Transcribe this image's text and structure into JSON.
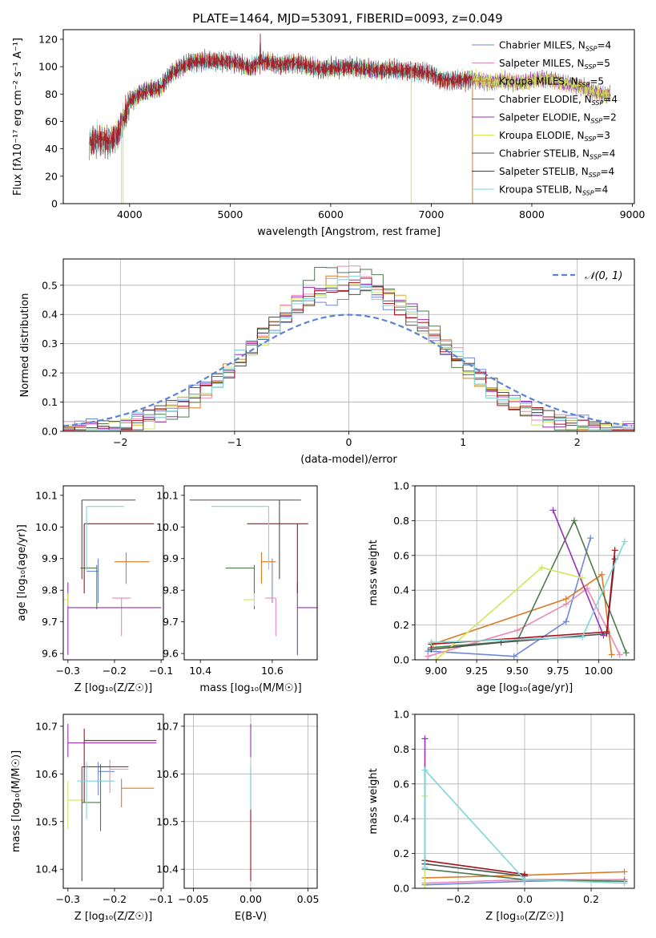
{
  "figure_title": "PLATE=1464, MJD=53091, FIBERID=0093, z=0.049",
  "models": [
    {
      "name": "Chabrier MILES",
      "nssp": "4",
      "color": "#6f88d9"
    },
    {
      "name": "Salpeter MILES",
      "nssp": "5",
      "color": "#e98ab8"
    },
    {
      "name": "Kroupa MILES",
      "nssp": "5",
      "color": "#dc7a25"
    },
    {
      "name": "Chabrier ELODIE",
      "nssp": "4",
      "color": "#4e7a4e"
    },
    {
      "name": "Salpeter ELODIE",
      "nssp": "2",
      "color": "#9a2fb8"
    },
    {
      "name": "Kroupa ELODIE",
      "nssp": "3",
      "color": "#d3e659"
    },
    {
      "name": "Chabrier STELIB",
      "nssp": "4",
      "color": "#4f4f4f"
    },
    {
      "name": "Salpeter STELIB",
      "nssp": "4",
      "color": "#a6101a"
    },
    {
      "name": "Kroupa STELIB",
      "nssp": "4",
      "color": "#7fd6d8"
    }
  ],
  "chart_data": [
    {
      "id": "spectrum",
      "type": "line",
      "xlabel": "wavelength [Angstrom, rest frame]",
      "ylabel": "Flux [fλ10⁻¹⁷ erg cm⁻² s⁻¹ A⁻¹]",
      "xlim": [
        3340,
        9020
      ],
      "ylim": [
        0,
        127
      ],
      "xticks": [
        4000,
        5000,
        6000,
        7000,
        8000,
        9000
      ],
      "yticks": [
        0,
        20,
        40,
        60,
        80,
        100,
        120
      ],
      "legend": "upper right",
      "continuum": [
        [
          3600,
          44
        ],
        [
          3700,
          47
        ],
        [
          3800,
          45
        ],
        [
          3880,
          50
        ],
        [
          3950,
          63
        ],
        [
          4000,
          75
        ],
        [
          4100,
          80
        ],
        [
          4200,
          83
        ],
        [
          4300,
          84
        ],
        [
          4400,
          94
        ],
        [
          4500,
          99
        ],
        [
          4600,
          103
        ],
        [
          4700,
          104
        ],
        [
          4800,
          104
        ],
        [
          4900,
          104
        ],
        [
          5000,
          104
        ],
        [
          5100,
          102
        ],
        [
          5200,
          99
        ],
        [
          5300,
          104
        ],
        [
          5400,
          103
        ],
        [
          5500,
          101
        ],
        [
          5600,
          103
        ],
        [
          5700,
          102
        ],
        [
          5800,
          100
        ],
        [
          5900,
          98
        ],
        [
          6000,
          99
        ],
        [
          6100,
          99
        ],
        [
          6200,
          100
        ],
        [
          6300,
          98
        ],
        [
          6400,
          98
        ],
        [
          6500,
          97
        ],
        [
          6600,
          98
        ],
        [
          6700,
          97
        ],
        [
          6800,
          97
        ],
        [
          6900,
          96
        ],
        [
          7000,
          95
        ],
        [
          7100,
          90
        ],
        [
          7200,
          90
        ],
        [
          7300,
          90
        ],
        [
          7400,
          91
        ],
        [
          7500,
          90
        ],
        [
          7600,
          88
        ],
        [
          7700,
          90
        ],
        [
          7800,
          89
        ],
        [
          7900,
          88
        ],
        [
          8000,
          90
        ],
        [
          8100,
          91
        ],
        [
          8200,
          90
        ],
        [
          8300,
          88
        ],
        [
          8400,
          87
        ],
        [
          8500,
          85
        ],
        [
          8600,
          82
        ],
        [
          8700,
          80
        ],
        [
          8780,
          80
        ]
      ],
      "dropouts": [
        3918,
        3935,
        6800,
        7410
      ]
    },
    {
      "id": "residuals",
      "type": "histogram",
      "xlabel": "(data-model)/error",
      "ylabel": "Normed distribution",
      "xlim": [
        -2.5,
        2.5
      ],
      "ylim": [
        0,
        0.59
      ],
      "xticks": [
        -2,
        -1,
        0,
        1,
        2
      ],
      "yticks": [
        0.0,
        0.1,
        0.2,
        0.3,
        0.4,
        0.5
      ],
      "legend_label": "𝒩(0, 1)",
      "legend": "upper right",
      "bin_width": 0.1,
      "peaks": [
        0.47,
        0.54,
        0.51,
        0.56,
        0.51,
        0.51,
        0.49,
        0.5,
        0.5
      ],
      "peak_shift": [
        0.25,
        0.15,
        -0.05,
        -0.05,
        0.25,
        0.15,
        0.0,
        0.1,
        0.0
      ],
      "amp": [
        0.1,
        0.07,
        0.08,
        0.08,
        0.05,
        0.05,
        0.08,
        0.04,
        0.0
      ],
      "widths": [
        0.85,
        0.77,
        0.78,
        0.74,
        0.8,
        0.78,
        0.82,
        0.8,
        0.8
      ]
    },
    {
      "id": "age-vs-Z",
      "type": "errorbar",
      "xlabel": "Z [log₁₀(Z/Z☉)]",
      "ylabel": "age  [log₁₀(age/yr)]",
      "xlim": [
        -0.31,
        -0.095
      ],
      "ylim": [
        9.58,
        10.13
      ],
      "xticks": [
        -0.3,
        -0.2,
        -0.1
      ],
      "yticks": [
        9.6,
        9.7,
        9.8,
        9.9,
        10.0,
        10.1
      ],
      "points": [
        {
          "x": -0.235,
          "xerr": [
            0.025,
            0.0
          ],
          "y": 9.86,
          "yerr": [
            0.1,
            0.04
          ]
        },
        {
          "x": -0.185,
          "xerr": [
            0.02,
            0.02
          ],
          "y": 9.775,
          "yerr": [
            0.12,
            0.0
          ]
        },
        {
          "x": -0.175,
          "xerr": [
            0.025,
            0.05
          ],
          "y": 9.89,
          "yerr": [
            0.07,
            0.03
          ]
        },
        {
          "x": -0.238,
          "xerr": [
            0.035,
            0.0
          ],
          "y": 9.87,
          "yerr": [
            0.13,
            0.01
          ]
        },
        {
          "x": -0.3,
          "xerr": [
            0.0,
            0.2
          ],
          "y": 9.745,
          "yerr": [
            0.15,
            0.08
          ]
        },
        {
          "x": -0.3,
          "xerr": [
            0.02,
            0.0
          ],
          "y": 9.77,
          "yerr": [
            0.02,
            0.02
          ]
        },
        {
          "x": -0.27,
          "xerr": [
            0.0,
            0.115
          ],
          "y": 10.085,
          "yerr": [
            0.25,
            0.0
          ]
        },
        {
          "x": -0.265,
          "xerr": [
            0.0,
            0.15
          ],
          "y": 10.01,
          "yerr": [
            0.22,
            0.0
          ]
        },
        {
          "x": -0.26,
          "xerr": [
            0.0,
            0.08
          ],
          "y": 10.065,
          "yerr": [
            0.2,
            0.0
          ]
        }
      ]
    },
    {
      "id": "age-vs-mass",
      "type": "errorbar",
      "xlabel": "mass [log₁₀(M/M☉)]",
      "ylabel": "",
      "xlim": [
        10.355,
        10.725
      ],
      "ylim": [
        9.58,
        10.13
      ],
      "xticks": [
        10.4,
        10.6
      ],
      "yticks": [
        9.6,
        9.7,
        9.8,
        9.9,
        10.0,
        10.1
      ],
      "points": [
        {
          "x": 10.6,
          "xerr": [
            0.0,
            0.0
          ],
          "y": 9.86,
          "yerr": [
            0.1,
            0.04
          ]
        },
        {
          "x": 10.61,
          "xerr": [
            0.03,
            0.0
          ],
          "y": 9.775,
          "yerr": [
            0.12,
            0.0
          ]
        },
        {
          "x": 10.57,
          "xerr": [
            0.0,
            0.04
          ],
          "y": 9.89,
          "yerr": [
            0.07,
            0.03
          ]
        },
        {
          "x": 10.55,
          "xerr": [
            0.08,
            0.0
          ],
          "y": 9.87,
          "yerr": [
            0.13,
            0.01
          ]
        },
        {
          "x": 10.67,
          "xerr": [
            0.0,
            0.06
          ],
          "y": 9.745,
          "yerr": [
            0.15,
            0.08
          ]
        },
        {
          "x": 10.55,
          "xerr": [
            0.03,
            0.0
          ],
          "y": 9.77,
          "yerr": [
            0.02,
            0.02
          ]
        },
        {
          "x": 10.62,
          "xerr": [
            0.25,
            0.06
          ],
          "y": 10.085,
          "yerr": [
            0.25,
            0.0
          ]
        },
        {
          "x": 10.67,
          "xerr": [
            0.14,
            0.03
          ],
          "y": 10.01,
          "yerr": [
            0.22,
            0.0
          ]
        },
        {
          "x": 10.59,
          "xerr": [
            0.16,
            0.0
          ],
          "y": 10.065,
          "yerr": [
            0.2,
            0.0
          ]
        }
      ]
    },
    {
      "id": "weight-vs-age",
      "type": "line",
      "xlabel": "age  [log₁₀(age/yr)]",
      "ylabel": "mass weight",
      "xlim": [
        8.87,
        10.22
      ],
      "ylim": [
        0,
        1.0
      ],
      "xticks": [
        9.0,
        9.25,
        9.5,
        9.75,
        10.0
      ],
      "yticks": [
        0.0,
        0.2,
        0.4,
        0.6,
        0.8,
        1.0
      ],
      "series": [
        [
          [
            8.95,
            0.05
          ],
          [
            9.48,
            0.02
          ],
          [
            9.8,
            0.22
          ],
          [
            9.95,
            0.7
          ]
        ],
        [
          [
            8.95,
            0.02
          ],
          [
            9.5,
            0.17
          ],
          [
            9.8,
            0.32
          ],
          [
            9.93,
            0.41
          ],
          [
            10.13,
            0.03
          ]
        ],
        [
          [
            8.98,
            0.09
          ],
          [
            9.8,
            0.35
          ],
          [
            10.02,
            0.49
          ],
          [
            10.08,
            0.03
          ]
        ],
        [
          [
            8.97,
            0.07
          ],
          [
            9.5,
            0.11
          ],
          [
            9.85,
            0.8
          ],
          [
            10.17,
            0.04
          ]
        ],
        [
          [
            9.72,
            0.86
          ],
          [
            10.03,
            0.14
          ]
        ],
        [
          [
            9.0,
            0.0
          ],
          [
            9.65,
            0.53
          ],
          [
            9.9,
            0.47
          ]
        ],
        [
          [
            8.97,
            0.06
          ],
          [
            9.4,
            0.1
          ],
          [
            10.05,
            0.15
          ],
          [
            10.1,
            0.58
          ]
        ],
        [
          [
            8.97,
            0.09
          ],
          [
            10.05,
            0.16
          ],
          [
            10.1,
            0.63
          ]
        ],
        [
          [
            8.97,
            0.1
          ],
          [
            9.9,
            0.13
          ],
          [
            10.16,
            0.68
          ]
        ]
      ]
    },
    {
      "id": "mass-vs-Z",
      "type": "errorbar",
      "xlabel": "Z [log₁₀(Z/Z☉)]",
      "ylabel": "mass [log₁₀(M/M☉)]",
      "xlim": [
        -0.31,
        -0.095
      ],
      "ylim": [
        10.36,
        10.725
      ],
      "xticks": [
        -0.3,
        -0.2,
        -0.1
      ],
      "yticks": [
        10.4,
        10.5,
        10.6,
        10.7
      ],
      "points": [
        {
          "x": -0.235,
          "xerr": [
            0.0,
            0.035
          ],
          "y": 10.605,
          "yerr": [
            0.05,
            0.02
          ]
        },
        {
          "x": -0.21,
          "xerr": [
            0.0,
            0.04
          ],
          "y": 10.61,
          "yerr": [
            0.05,
            0.02
          ]
        },
        {
          "x": -0.185,
          "xerr": [
            0.0,
            0.07
          ],
          "y": 10.57,
          "yerr": [
            0.04,
            0.02
          ]
        },
        {
          "x": -0.23,
          "xerr": [
            0.04,
            0.0
          ],
          "y": 10.54,
          "yerr": [
            0.06,
            0.08
          ]
        },
        {
          "x": -0.3,
          "xerr": [
            0.0,
            0.19
          ],
          "y": 10.665,
          "yerr": [
            0.03,
            0.04
          ]
        },
        {
          "x": -0.3,
          "xerr": [
            0.0,
            0.035
          ],
          "y": 10.545,
          "yerr": [
            0.06,
            0.04
          ]
        },
        {
          "x": -0.27,
          "xerr": [
            0.0,
            0.1
          ],
          "y": 10.615,
          "yerr": [
            0.24,
            0.0
          ]
        },
        {
          "x": -0.265,
          "xerr": [
            0.0,
            0.155
          ],
          "y": 10.67,
          "yerr": [
            0.13,
            0.025
          ]
        },
        {
          "x": -0.26,
          "xerr": [
            0.02,
            0.06
          ],
          "y": 10.585,
          "yerr": [
            0.08,
            0.04
          ]
        }
      ]
    },
    {
      "id": "mass-vs-ebv",
      "type": "errorbar",
      "xlabel": "E(B-V)",
      "ylabel": "",
      "xlim": [
        -0.058,
        0.058
      ],
      "ylim": [
        10.36,
        10.725
      ],
      "xticks": [
        -0.05,
        0.0,
        0.05
      ],
      "yticks": [
        10.4,
        10.5,
        10.6,
        10.7
      ],
      "xtick_labels": [
        "−0.05",
        "0.00",
        "0.05"
      ],
      "points": [
        {
          "x": 0.0,
          "y": 10.665,
          "yerr": [
            0.03,
            0.04
          ]
        },
        {
          "x": 0.0,
          "y": 10.615,
          "yerr": [
            0.24,
            0.0
          ]
        },
        {
          "x": 0.0,
          "y": 10.585,
          "yerr": [
            0.06,
            0.04
          ]
        }
      ]
    },
    {
      "id": "weight-vs-Z",
      "type": "line",
      "xlabel": "Z [log₁₀(Z/Z☉)]",
      "ylabel": "mass weight",
      "xlim": [
        -0.33,
        0.33
      ],
      "ylim": [
        0,
        1.0
      ],
      "xticks": [
        -0.2,
        0.0,
        0.2
      ],
      "yticks": [
        0.0,
        0.2,
        0.4,
        0.6,
        0.8,
        1.0
      ],
      "series": [
        [
          [
            -0.3,
            0.02
          ],
          [
            0.0,
            0.04
          ],
          [
            0.3,
            0.05
          ]
        ],
        [
          [
            -0.3,
            0.03
          ],
          [
            0.0,
            0.05
          ],
          [
            0.3,
            0.05
          ]
        ],
        [
          [
            -0.3,
            0.06
          ],
          [
            0.0,
            0.075
          ],
          [
            0.3,
            0.095
          ]
        ],
        [
          [
            -0.3,
            0.11
          ],
          [
            0.0,
            0.05
          ],
          [
            0.3,
            0.04
          ]
        ],
        [
          [
            -0.3,
            0.86
          ],
          [
            -0.3,
            0.14
          ]
        ],
        [
          [
            -0.3,
            0.0
          ],
          [
            -0.3,
            0.53
          ]
        ],
        [
          [
            -0.3,
            0.14
          ],
          [
            0.0,
            0.07
          ]
        ],
        [
          [
            -0.3,
            0.16
          ],
          [
            0.0,
            0.08
          ]
        ],
        [
          [
            -0.3,
            0.12
          ],
          [
            -0.3,
            0.68
          ],
          [
            0.0,
            0.05
          ],
          [
            0.3,
            0.03
          ]
        ]
      ]
    }
  ]
}
